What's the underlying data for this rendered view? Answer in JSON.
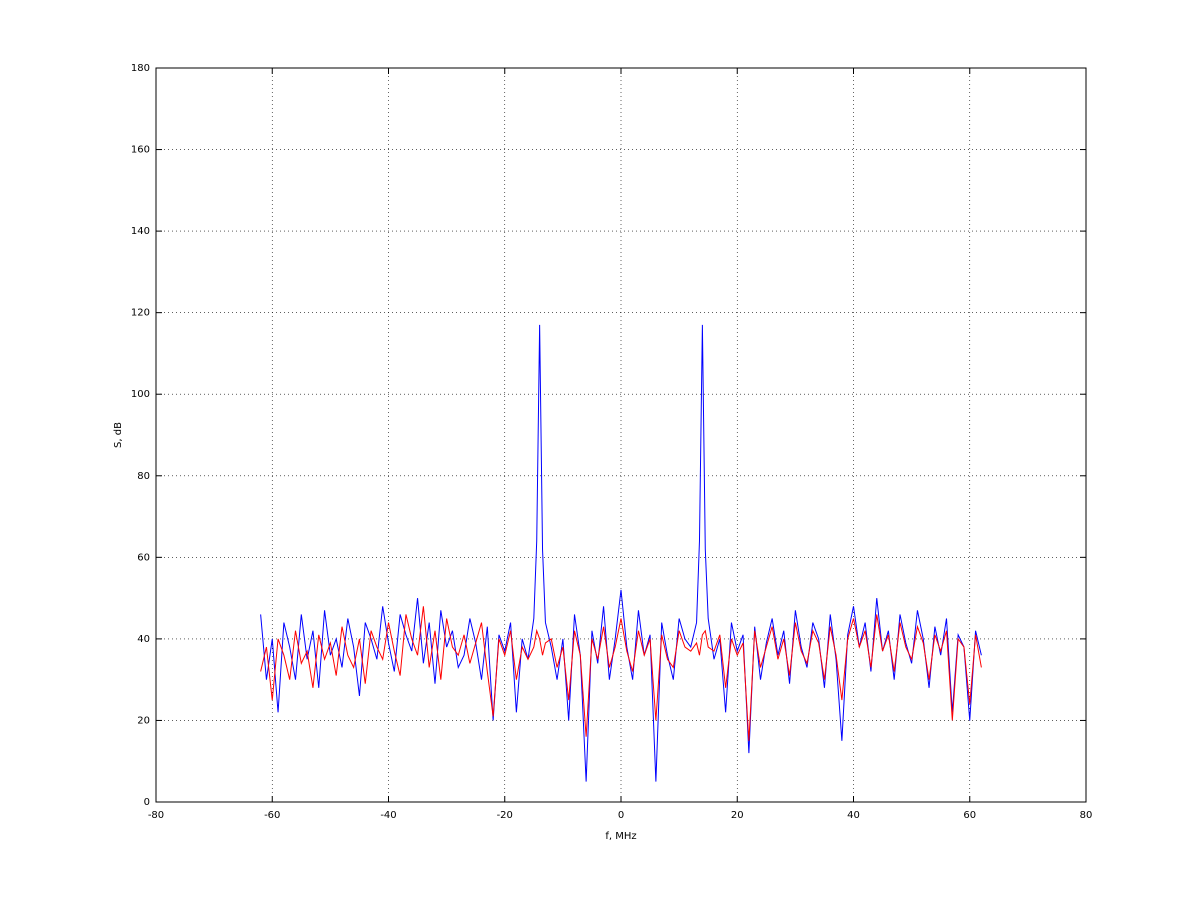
{
  "chart_data": {
    "type": "line",
    "xlabel": "f, MHz",
    "ylabel": "S, dB",
    "x": [
      -62,
      -61,
      -60,
      -59,
      -58,
      -57,
      -56,
      -55,
      -54,
      -53,
      -52,
      -51,
      -50,
      -49,
      -48,
      -47,
      -46,
      -45,
      -44,
      -43,
      -42,
      -41,
      -40,
      -39,
      -38,
      -37,
      -36,
      -35,
      -34,
      -33,
      -32,
      -31,
      -30,
      -29,
      -28,
      -27,
      -26,
      -25,
      -24,
      -23,
      -22,
      -21,
      -20,
      -19,
      -18,
      -17,
      -16,
      -15,
      -14.5,
      -14,
      -13.5,
      -13,
      -12,
      -11,
      -10,
      -9,
      -8,
      -7,
      -6,
      -5,
      -4,
      -3,
      -2,
      -1,
      0,
      1,
      2,
      3,
      4,
      5,
      6,
      7,
      8,
      9,
      10,
      11,
      12,
      13,
      13.5,
      14,
      14.5,
      15,
      16,
      17,
      18,
      19,
      20,
      21,
      22,
      23,
      24,
      25,
      26,
      27,
      28,
      29,
      30,
      31,
      32,
      33,
      34,
      35,
      36,
      37,
      38,
      39,
      40,
      41,
      42,
      43,
      44,
      45,
      46,
      47,
      48,
      49,
      50,
      51,
      52,
      53,
      54,
      55,
      56,
      57,
      58,
      59,
      60,
      61,
      62
    ],
    "series": [
      {
        "color": "#0000ff",
        "values": [
          46,
          30,
          40,
          22,
          44,
          38,
          30,
          46,
          35,
          42,
          28,
          47,
          36,
          40,
          33,
          45,
          38,
          26,
          44,
          40,
          35,
          48,
          39,
          32,
          46,
          41,
          37,
          50,
          34,
          44,
          29,
          47,
          38,
          42,
          33,
          36,
          45,
          39,
          30,
          43,
          20,
          41,
          37,
          44,
          22,
          40,
          35,
          45,
          64,
          117,
          62,
          44,
          38,
          30,
          40,
          20,
          46,
          36,
          5,
          42,
          34,
          48,
          30,
          40,
          52,
          38,
          30,
          47,
          36,
          41,
          5,
          44,
          36,
          30,
          45,
          40,
          38,
          44,
          64,
          117,
          62,
          45,
          35,
          40,
          22,
          44,
          37,
          41,
          12,
          43,
          30,
          39,
          45,
          36,
          42,
          29,
          47,
          38,
          33,
          44,
          40,
          28,
          46,
          35,
          15,
          41,
          48,
          38,
          44,
          32,
          50,
          37,
          42,
          30,
          46,
          39,
          34,
          47,
          40,
          28,
          43,
          36,
          45,
          22,
          41,
          38,
          20,
          42,
          36
        ]
      },
      {
        "color": "#ff0000",
        "values": [
          32,
          38,
          25,
          40,
          36,
          30,
          42,
          34,
          37,
          28,
          41,
          35,
          39,
          31,
          43,
          36,
          33,
          40,
          29,
          42,
          38,
          35,
          44,
          37,
          31,
          46,
          40,
          36,
          48,
          33,
          42,
          30,
          45,
          38,
          36,
          41,
          34,
          39,
          44,
          32,
          21,
          40,
          36,
          42,
          30,
          38,
          35,
          38,
          42,
          40,
          36,
          39,
          40,
          33,
          38,
          25,
          42,
          36,
          16,
          40,
          35,
          43,
          33,
          38,
          45,
          37,
          32,
          42,
          36,
          40,
          20,
          41,
          35,
          33,
          42,
          38,
          37,
          39,
          36,
          41,
          42,
          38,
          37,
          41,
          28,
          40,
          36,
          39,
          15,
          42,
          33,
          38,
          43,
          35,
          40,
          31,
          44,
          37,
          34,
          42,
          39,
          30,
          43,
          36,
          25,
          40,
          45,
          38,
          42,
          33,
          46,
          37,
          41,
          32,
          44,
          38,
          35,
          43,
          39,
          30,
          41,
          37,
          42,
          20,
          40,
          38,
          24,
          41,
          33
        ]
      }
    ],
    "xlim": [
      -80,
      80
    ],
    "xticks": [
      -80,
      -60,
      -40,
      -20,
      0,
      20,
      40,
      60,
      80
    ],
    "ylim": [
      0,
      180
    ],
    "yticks": [
      0,
      20,
      40,
      60,
      80,
      100,
      120,
      140,
      160,
      180
    ],
    "grid": true
  }
}
